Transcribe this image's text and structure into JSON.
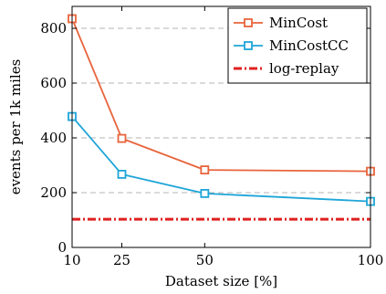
{
  "chart_data": {
    "type": "line",
    "xlabel": "Dataset size [%]",
    "ylabel": "events per 1k miles",
    "x_ticks": [
      10,
      25,
      50,
      100
    ],
    "y_ticks": [
      0,
      200,
      400,
      600,
      800
    ],
    "xlim": [
      10,
      100
    ],
    "ylim": [
      0,
      880
    ],
    "grid": "horizontal dashed",
    "legend_position": "top-right",
    "series": [
      {
        "name": "MinCost",
        "x": [
          10,
          25,
          50,
          100
        ],
        "y": [
          835,
          398,
          283,
          278
        ],
        "color": "#e8643c",
        "marker": "square",
        "style": "solid"
      },
      {
        "name": "MinCostCC",
        "x": [
          10,
          25,
          50,
          100
        ],
        "y": [
          478,
          267,
          197,
          168
        ],
        "color": "#1ea5d8",
        "marker": "square",
        "style": "solid"
      },
      {
        "name": "log-replay",
        "x": [
          10,
          100
        ],
        "y": [
          103,
          103
        ],
        "color": "#e02020",
        "marker": "none",
        "style": "dashdot"
      }
    ]
  }
}
